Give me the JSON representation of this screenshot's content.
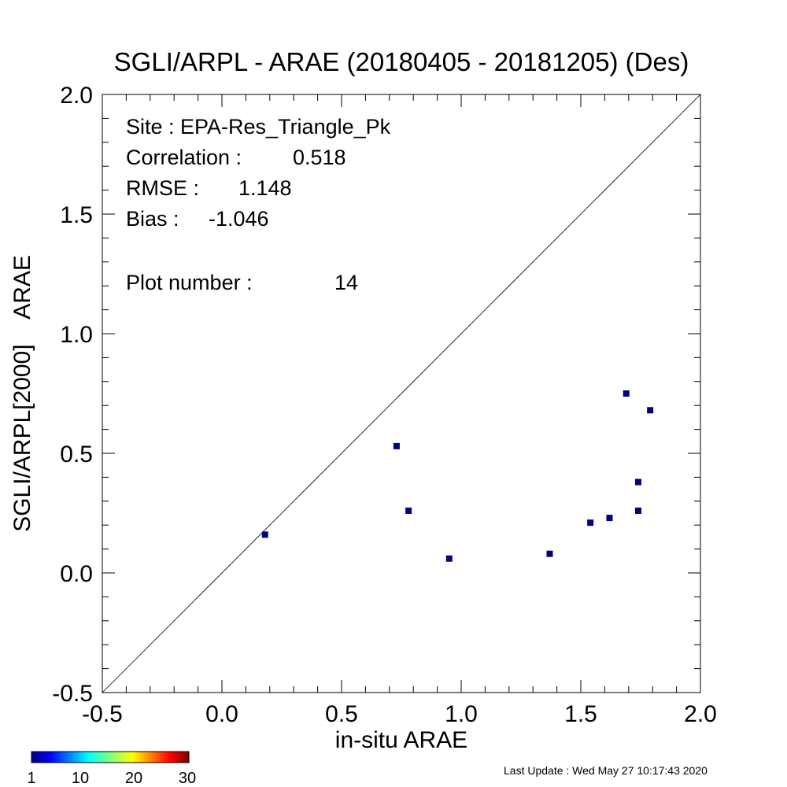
{
  "chart_data": {
    "type": "scatter",
    "title": "SGLI/ARPL - ARAE (20180405 - 20181205) (Des)",
    "xlabel": "in-situ ARAE",
    "ylabel": "SGLI/ARPL[2000]    ARAE",
    "xlim": [
      -0.5,
      2.0
    ],
    "ylim": [
      -0.5,
      2.0
    ],
    "xticks": [
      "-0.5",
      "0.0",
      "0.5",
      "1.0",
      "1.5",
      "2.0"
    ],
    "yticks": [
      "-0.5",
      "0.0",
      "0.5",
      "1.0",
      "1.5",
      "2.0"
    ],
    "grid": false,
    "reference_line": "1:1",
    "marker_color": "#00007f",
    "points": [
      {
        "x": 0.18,
        "y": 0.16
      },
      {
        "x": 0.73,
        "y": 0.53
      },
      {
        "x": 0.78,
        "y": 0.26
      },
      {
        "x": 0.95,
        "y": 0.06
      },
      {
        "x": 1.37,
        "y": 0.08
      },
      {
        "x": 1.54,
        "y": 0.21
      },
      {
        "x": 1.62,
        "y": 0.23
      },
      {
        "x": 1.69,
        "y": 0.75
      },
      {
        "x": 1.74,
        "y": 0.38
      },
      {
        "x": 1.74,
        "y": 0.26
      },
      {
        "x": 1.79,
        "y": 0.68
      }
    ]
  },
  "stats": {
    "site": "Site : EPA-Res_Triangle_Pk",
    "correlation_label": "Correlation :",
    "correlation_value": "0.518",
    "rmse_label": "RMSE :",
    "rmse_value": "1.148",
    "bias_label": "Bias :",
    "bias_value": "-1.046",
    "plot_number_label": "Plot number :",
    "plot_number_value": "14"
  },
  "colorbar": {
    "labels": [
      "1",
      "10",
      "20",
      "30"
    ]
  },
  "footer": {
    "last_update": "Last Update : Wed May 27 10:17:43 2020"
  }
}
